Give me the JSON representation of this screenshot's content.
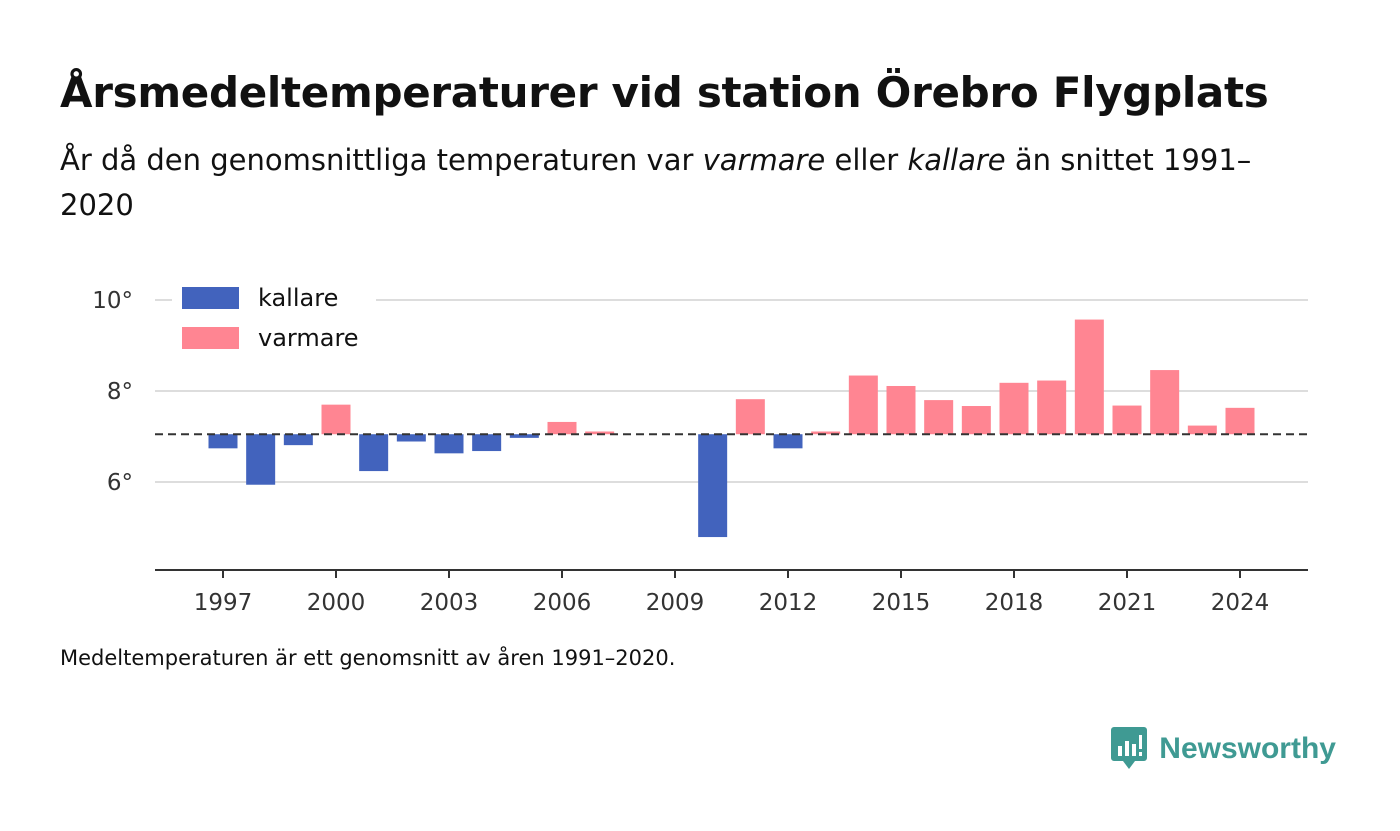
{
  "title": "Årsmedeltemperaturer vid station Örebro Flygplats",
  "subtitle": {
    "part1": "År då den genomsnittliga temperaturen var ",
    "warmer": "varmare",
    "part2": " eller ",
    "colder": "kallare",
    "part3": " än snittet 1991–2020"
  },
  "note": "Medeltemperaturen är ett genomsnitt av åren 1991–2020.",
  "brand": {
    "name": "Newsworthy",
    "color": "#3f9a93"
  },
  "chart_data": {
    "type": "bar",
    "baseline": 7.05,
    "ylim": [
      4.0,
      10.2
    ],
    "yticks": [
      6,
      8,
      10
    ],
    "ytick_labels": [
      "6°",
      "8°",
      "10°"
    ],
    "xlim": [
      1995.3,
      2025.9
    ],
    "xticks": [
      1997,
      2000,
      2003,
      2006,
      2009,
      2012,
      2015,
      2018,
      2021,
      2024
    ],
    "grid": true,
    "legend_position": "top-left",
    "legend": [
      {
        "key": "colder",
        "label": "kallare",
        "color": "#4263bd"
      },
      {
        "key": "warmer",
        "label": "varmare",
        "color": "#ff8592"
      }
    ],
    "colors": {
      "colder": "#4263bd",
      "warmer": "#ff8592",
      "grid": "#dddddd",
      "axis": "#333333"
    },
    "x": [
      1997,
      1998,
      1999,
      2000,
      2001,
      2002,
      2003,
      2004,
      2005,
      2006,
      2007,
      2010,
      2011,
      2012,
      2013,
      2014,
      2015,
      2016,
      2017,
      2018,
      2019,
      2020,
      2021,
      2022,
      2023,
      2024
    ],
    "values": [
      6.74,
      5.94,
      6.81,
      7.7,
      6.24,
      6.89,
      6.63,
      6.68,
      6.97,
      7.32,
      7.11,
      4.79,
      7.82,
      6.74,
      7.11,
      8.34,
      8.11,
      7.8,
      7.67,
      8.18,
      8.23,
      9.57,
      7.68,
      8.46,
      7.24,
      7.63
    ]
  }
}
